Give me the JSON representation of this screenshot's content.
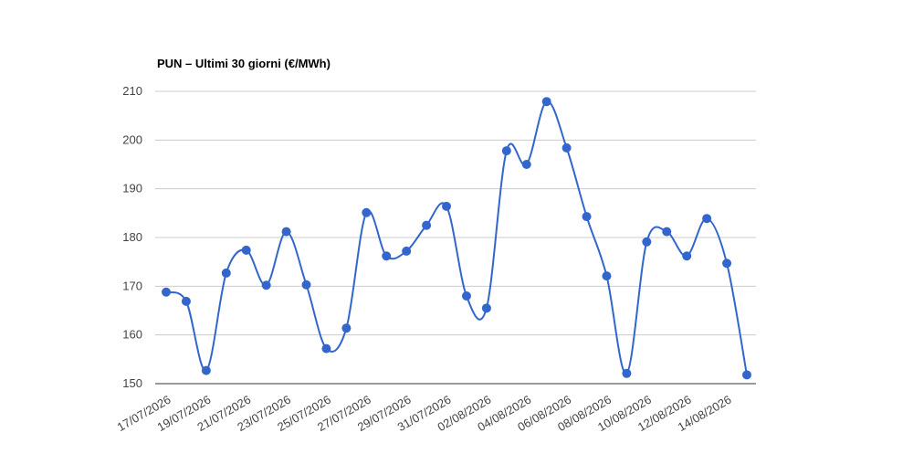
{
  "chart_data": {
    "type": "line",
    "title": "PUN – Ultimi 30 giorni (€/MWh)",
    "categories": [
      "17/07/2026",
      null,
      "19/07/2026",
      null,
      "21/07/2026",
      null,
      "23/07/2026",
      null,
      "25/07/2026",
      null,
      "27/07/2026",
      null,
      "29/07/2026",
      null,
      "31/07/2026",
      null,
      "02/08/2026",
      null,
      "04/08/2026",
      null,
      "06/08/2026",
      null,
      "08/08/2026",
      null,
      "10/08/2026",
      null,
      "12/08/2026",
      null,
      "14/08/2026",
      null
    ],
    "series": [
      {
        "name": "PUN",
        "color": "#3366cc",
        "values": [
          168.8,
          166.9,
          152.7,
          172.7,
          177.4,
          170.2,
          181.2,
          170.3,
          157.2,
          161.4,
          185.1,
          176.2,
          177.2,
          182.5,
          186.4,
          168.0,
          165.5,
          197.8,
          195.0,
          207.9,
          198.4,
          184.3,
          172.1,
          152.1,
          179.1,
          181.2,
          176.2,
          183.9,
          174.7,
          151.8
        ]
      }
    ],
    "ylim": [
      150,
      210
    ],
    "yticks": [
      150,
      160,
      170,
      180,
      190,
      200,
      210
    ],
    "grid": true
  }
}
